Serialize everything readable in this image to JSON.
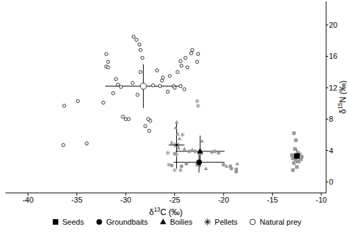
{
  "chart_data": {
    "type": "scatter",
    "x_label": "δ13C (‰)",
    "y_label": "δ15N (‰)",
    "xlim": [
      -42.3,
      -9.5
    ],
    "ylim": [
      -1.4,
      23
    ],
    "xticks": [
      -40,
      -35,
      -30,
      -25,
      -20,
      -15,
      -10
    ],
    "yticks": [
      0,
      4,
      8,
      12,
      16,
      20
    ],
    "grid": false,
    "legend": "bottom",
    "series": [
      {
        "name": "Seeds",
        "marker": "square",
        "color": "#999999",
        "x": [
          -12.8,
          -12.6,
          -12.7,
          -12.4,
          -12.2,
          -12.9,
          -12.6,
          -12.3,
          -12.0,
          -12.8,
          -12.5,
          -12.9,
          -12.1,
          -13.0
        ],
        "y": [
          6.2,
          5.3,
          4.2,
          3.7,
          3.5,
          3.0,
          2.8,
          2.6,
          3.2,
          2.4,
          1.9,
          1.5,
          2.9,
          3.4
        ],
        "mean": {
          "x": -12.5,
          "y": 3.3,
          "x_error": 0.5,
          "y_error": 0.9
        }
      },
      {
        "name": "Groundbaits",
        "marker": "circle",
        "color": "#999999",
        "x": [
          -25.3,
          -24.3,
          -23.8,
          -23.5,
          -22.9,
          -22.5,
          -21.2,
          -20.9,
          -20.5,
          -19.3,
          -19.2,
          -18.7,
          -18.7,
          -22.7,
          -25.0,
          -20.0
        ],
        "y": [
          2.1,
          2.0,
          2.3,
          3.9,
          3.9,
          3.7,
          3.8,
          3.9,
          3.7,
          2.0,
          1.7,
          1.3,
          1.6,
          2.2,
          3.6,
          2.2
        ],
        "mean": {
          "x": -22.5,
          "y": 2.5,
          "x_error": 2.6,
          "y_error": 1.3
        }
      },
      {
        "name": "Boilies",
        "marker": "triangle",
        "color": "#999999",
        "x": [
          -25.3,
          -24.9,
          -24.8,
          -24.7,
          -24.5,
          -24.6,
          -24.0,
          -23.2,
          -22.3,
          -21.8,
          -19.7,
          -18.6,
          -22.2
        ],
        "y": [
          5.0,
          6.9,
          7.6,
          6.1,
          5.5,
          4.3,
          4.2,
          4.1,
          3.6,
          1.7,
          2.0,
          2.3,
          5.2
        ],
        "mean": {
          "x": -22.4,
          "y": 3.9,
          "x_error": 2.5,
          "y_error": 2.0
        }
      },
      {
        "name": "Pellets",
        "marker": "asterisk",
        "color": "#999999",
        "x": [
          -22.7,
          -22.6,
          -25.7,
          -25.6,
          -25.0,
          -24.4,
          -24.8,
          -24.2
        ],
        "y": [
          10.3,
          9.7,
          3.7,
          2.2,
          1.5,
          1.5,
          3.5,
          6.0
        ],
        "mean": {
          "x": -24.8,
          "y": 4.7,
          "x_error": 0.8,
          "y_error": 3.0
        }
      },
      {
        "name": "Natural prey",
        "marker": "open_circle",
        "color": "#000000",
        "x": [
          -36.3,
          -36.4,
          -34.9,
          -34.0,
          -32.3,
          -32.0,
          -32.0,
          -31.8,
          -31.8,
          -31.3,
          -31.0,
          -30.8,
          -30.3,
          -30.0,
          -29.7,
          -29.2,
          -28.9,
          -28.6,
          -28.5,
          -28.5,
          -28.3,
          -29.3,
          -28.8,
          -28.0,
          -27.5,
          -27.7,
          -27.2,
          -26.8,
          -26.3,
          -26.2,
          -25.7,
          -25.5,
          -25.1,
          -25.0,
          -24.7,
          -24.4,
          -24.3,
          -24.4,
          -23.9,
          -23.7,
          -23.3,
          -23.2,
          -22.6,
          -22.7,
          -24.0,
          -27.6,
          -30.5,
          -26.5
        ],
        "y": [
          9.7,
          4.7,
          10.3,
          4.9,
          10.1,
          16.3,
          14.7,
          14.6,
          15.3,
          11.3,
          13.1,
          12.4,
          8.3,
          8.0,
          8.0,
          18.5,
          18.1,
          17.5,
          16.8,
          14.0,
          15.8,
          12.6,
          11.1,
          7.1,
          7.8,
          8.0,
          12.3,
          14.2,
          12.9,
          13.3,
          11.5,
          13.5,
          12.2,
          12.0,
          14.0,
          15.4,
          14.8,
          12.2,
          15.8,
          14.6,
          16.4,
          16.8,
          16.3,
          15.3,
          11.8,
          6.5,
          12.1,
          12.2
        ],
        "mean": {
          "x": -28.2,
          "y": 12.2,
          "x_error": 3.9,
          "y_error": 2.8
        }
      }
    ]
  }
}
